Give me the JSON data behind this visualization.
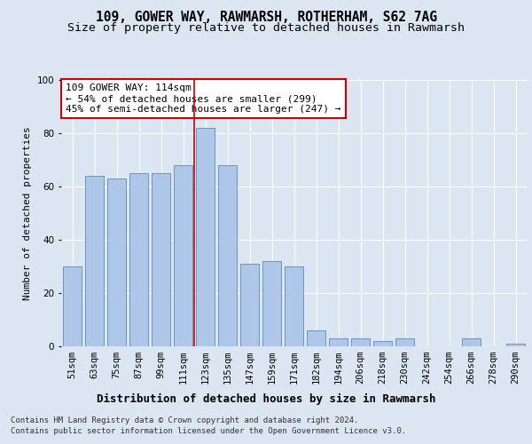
{
  "title1": "109, GOWER WAY, RAWMARSH, ROTHERHAM, S62 7AG",
  "title2": "Size of property relative to detached houses in Rawmarsh",
  "xlabel": "Distribution of detached houses by size in Rawmarsh",
  "ylabel": "Number of detached properties",
  "categories": [
    "51sqm",
    "63sqm",
    "75sqm",
    "87sqm",
    "99sqm",
    "111sqm",
    "123sqm",
    "135sqm",
    "147sqm",
    "159sqm",
    "171sqm",
    "182sqm",
    "194sqm",
    "206sqm",
    "218sqm",
    "230sqm",
    "242sqm",
    "254sqm",
    "266sqm",
    "278sqm",
    "290sqm"
  ],
  "values": [
    30,
    64,
    63,
    65,
    65,
    68,
    82,
    68,
    31,
    32,
    30,
    6,
    3,
    3,
    2,
    3,
    0,
    0,
    3,
    0,
    1
  ],
  "bar_color": "#aec6e8",
  "bar_edge_color": "#5b8db8",
  "highlight_bar_idx": 6,
  "highlight_color": "#cc0000",
  "annotation_text": "109 GOWER WAY: 114sqm\n← 54% of detached houses are smaller (299)\n45% of semi-detached houses are larger (247) →",
  "annotation_box_color": "#ffffff",
  "annotation_box_edge": "#cc0000",
  "background_color": "#dce6f2",
  "plot_bg_color": "#dce6f2",
  "footnote1": "Contains HM Land Registry data © Crown copyright and database right 2024.",
  "footnote2": "Contains public sector information licensed under the Open Government Licence v3.0.",
  "ylim": [
    0,
    100
  ],
  "title1_fontsize": 10.5,
  "title2_fontsize": 9.5,
  "xlabel_fontsize": 9,
  "ylabel_fontsize": 8,
  "tick_fontsize": 7.5,
  "annotation_fontsize": 8,
  "footnote_fontsize": 6.5
}
